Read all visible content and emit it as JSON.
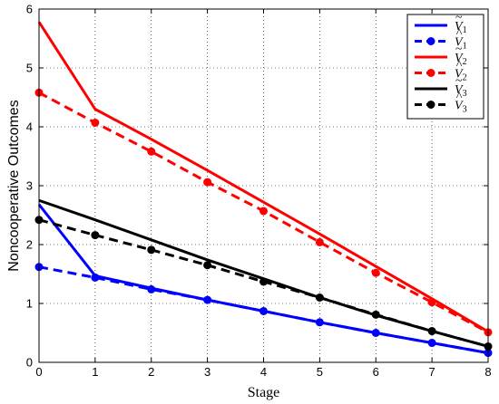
{
  "chart_data": {
    "type": "line",
    "xlabel": "Stage",
    "ylabel": "Noncooperative Outcomes",
    "xlim": [
      0,
      8
    ],
    "ylim": [
      0,
      6
    ],
    "xticks": [
      "0",
      "1",
      "2",
      "3",
      "4",
      "5",
      "6",
      "7",
      "8"
    ],
    "yticks": [
      "0",
      "1",
      "2",
      "3",
      "4",
      "5",
      "6"
    ],
    "grid": true,
    "legend_position": "top-right",
    "x": [
      0,
      1,
      2,
      3,
      4,
      5,
      6,
      7,
      8
    ],
    "series": [
      {
        "name": "Ṽ1",
        "base": "V",
        "sub": "1",
        "hat": "tilde",
        "color": "#0000ff",
        "style": "solid",
        "marker": "none",
        "values": [
          2.68,
          1.47,
          1.26,
          1.06,
          0.87,
          0.68,
          0.5,
          0.33,
          0.16
        ]
      },
      {
        "name": "V̂1",
        "base": "V",
        "sub": "1",
        "hat": "hat",
        "color": "#0000ff",
        "style": "dashed",
        "marker": "circle",
        "values": [
          1.62,
          1.44,
          1.24,
          1.06,
          0.87,
          0.68,
          0.5,
          0.33,
          0.16
        ]
      },
      {
        "name": "Ṽ2",
        "base": "V",
        "sub": "2",
        "hat": "tilde",
        "color": "#ff0000",
        "style": "solid",
        "marker": "none",
        "values": [
          5.78,
          4.3,
          3.79,
          3.26,
          2.72,
          2.18,
          1.63,
          1.08,
          0.52
        ]
      },
      {
        "name": "V̂2",
        "base": "V",
        "sub": "2",
        "hat": "hat",
        "color": "#ff0000",
        "style": "dashed",
        "marker": "circle",
        "values": [
          4.58,
          4.07,
          3.58,
          3.06,
          2.57,
          2.04,
          1.52,
          1.02,
          0.51
        ]
      },
      {
        "name": "Ṽ3",
        "base": "V",
        "sub": "3",
        "hat": "tilde",
        "color": "#000000",
        "style": "solid",
        "marker": "none",
        "values": [
          2.75,
          2.42,
          2.08,
          1.74,
          1.42,
          1.1,
          0.8,
          0.53,
          0.27
        ]
      },
      {
        "name": "V̂3",
        "base": "V",
        "sub": "3",
        "hat": "hat",
        "color": "#000000",
        "style": "dashed",
        "marker": "circle",
        "values": [
          2.42,
          2.16,
          1.91,
          1.65,
          1.37,
          1.1,
          0.81,
          0.53,
          0.27
        ]
      }
    ]
  }
}
